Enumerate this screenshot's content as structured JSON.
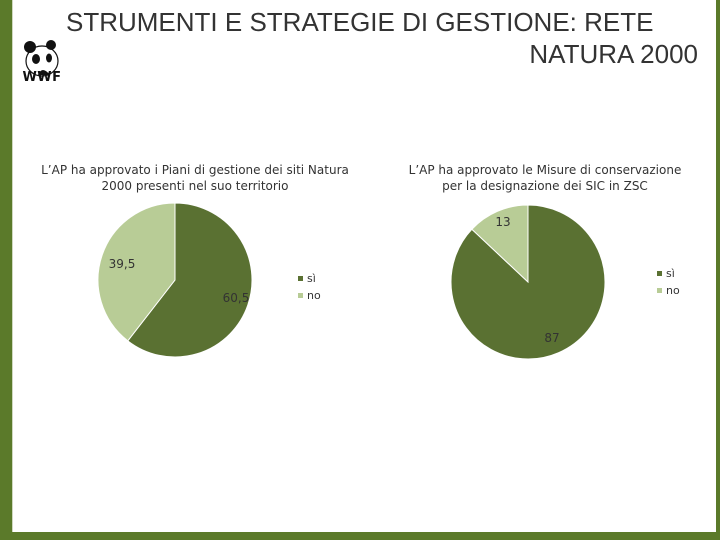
{
  "title": {
    "line1": "STRUMENTI E STRATEGIE DI GESTIONE: RETE",
    "line2": "NATURA 2000"
  },
  "logo": {
    "text": "WWF",
    "icon": "panda-logo-icon"
  },
  "colors": {
    "frame": "#5b7a2a",
    "si": "#5a7132",
    "no": "#b8cc96"
  },
  "chart_data": [
    {
      "type": "pie",
      "title_lines": [
        "L’AP ha approvato i Piani di gestione dei siti Natura",
        "2000 presenti nel suo territorio"
      ],
      "categories": [
        "sì",
        "no"
      ],
      "values": [
        60.5,
        39.5
      ],
      "value_labels": [
        "60,5",
        "39,5"
      ],
      "legend": "right"
    },
    {
      "type": "pie",
      "title_lines": [
        "L’AP ha approvato le Misure di conservazione",
        "per la designazione dei SIC in ZSC"
      ],
      "categories": [
        "sì",
        "no"
      ],
      "values": [
        87,
        13
      ],
      "value_labels": [
        "87",
        "13"
      ],
      "legend": "right"
    }
  ]
}
